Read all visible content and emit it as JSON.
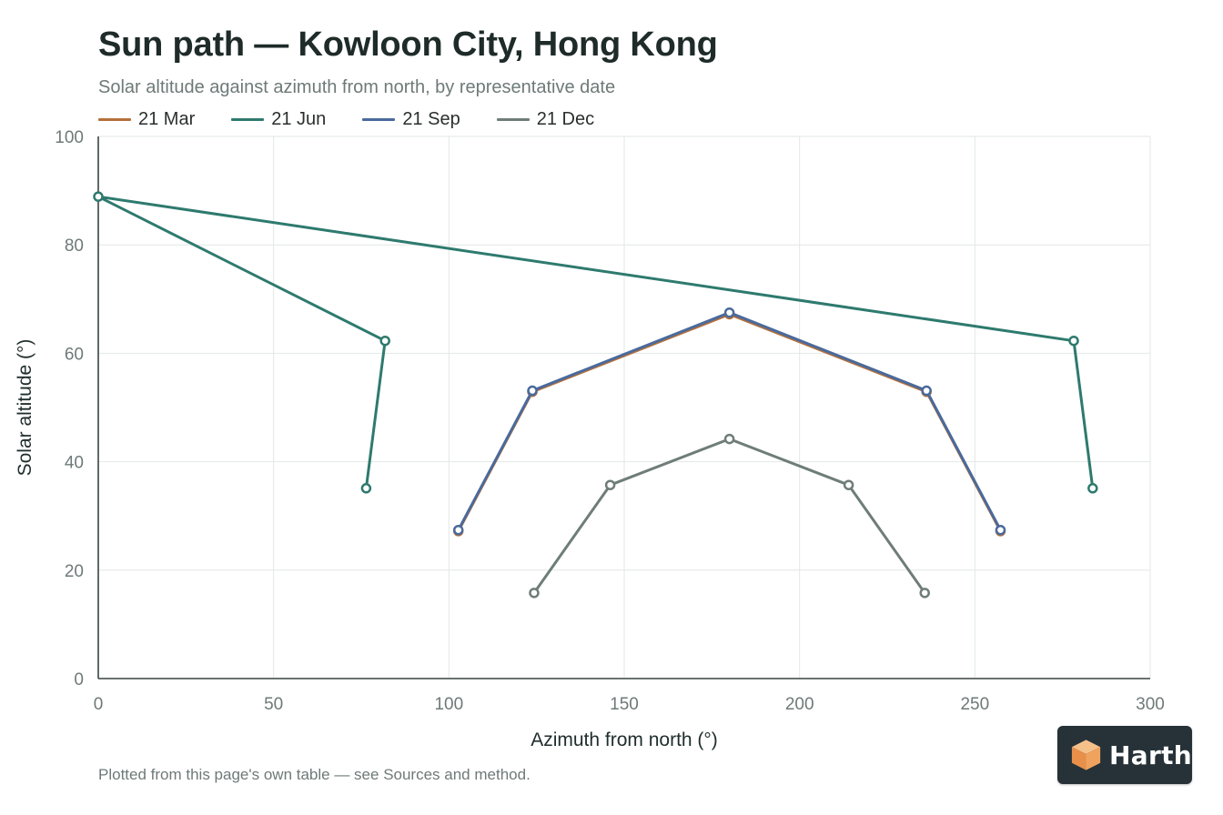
{
  "header": {
    "title": "Sun path — Kowloon City, Hong Kong",
    "subtitle": "Solar altitude against azimuth from north, by representative date"
  },
  "footnote": "Plotted from this page's own table — see Sources and method.",
  "logo": {
    "text": "Harth",
    "icon": "cube-logo-icon",
    "icon_color": "#f0a35e",
    "background": "#263238"
  },
  "chart_data": {
    "type": "line",
    "title": "Sun path — Kowloon City, Hong Kong",
    "subtitle": "Solar altitude against azimuth from north, by representative date",
    "xlabel": "Azimuth from north (°)",
    "ylabel": "Solar altitude (°)",
    "xlim": [
      0,
      300
    ],
    "ylim": [
      0,
      100
    ],
    "xticks": [
      0,
      50,
      100,
      150,
      200,
      250,
      300
    ],
    "yticks": [
      0,
      20,
      40,
      60,
      80,
      100
    ],
    "grid": true,
    "legend_position": "top-left",
    "series": [
      {
        "name": "21 Mar",
        "color": "#b5703a",
        "points": [
          [
            102.7,
            27.2
          ],
          [
            123.8,
            52.9
          ],
          [
            180.0,
            67.2
          ],
          [
            236.2,
            52.9
          ],
          [
            257.3,
            27.2
          ]
        ]
      },
      {
        "name": "21 Jun",
        "color": "#2e7a6e",
        "points": [
          [
            76.4,
            35.1
          ],
          [
            81.8,
            62.3
          ],
          [
            0.0,
            88.9
          ],
          [
            278.2,
            62.3
          ],
          [
            283.6,
            35.1
          ]
        ]
      },
      {
        "name": "21 Sep",
        "color": "#4a6a9c",
        "points": [
          [
            102.7,
            27.4
          ],
          [
            123.8,
            53.1
          ],
          [
            180.0,
            67.5
          ],
          [
            236.2,
            53.1
          ],
          [
            257.3,
            27.4
          ]
        ]
      },
      {
        "name": "21 Dec",
        "color": "#6e7d78",
        "points": [
          [
            124.3,
            15.8
          ],
          [
            146.0,
            35.7
          ],
          [
            180.0,
            44.2
          ],
          [
            214.0,
            35.7
          ],
          [
            235.7,
            15.8
          ]
        ]
      }
    ]
  }
}
